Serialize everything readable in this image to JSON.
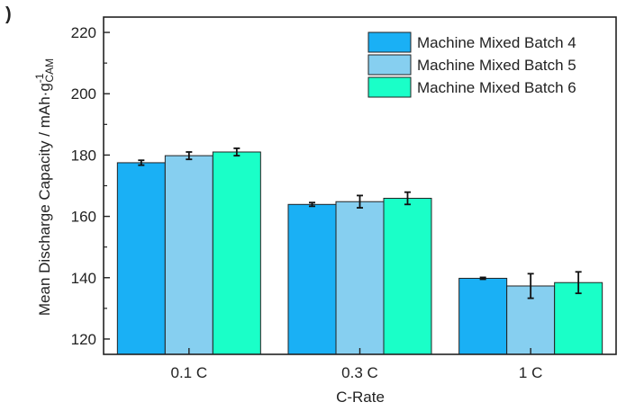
{
  "panel_label": ")",
  "chart_data": {
    "type": "bar",
    "title": "",
    "xlabel": "C-Rate",
    "ylabel_main": "Mean Discharge Capacity / mAh·g",
    "ylabel_sup": "-1",
    "ylabel_sub": "CAM",
    "categories": [
      "0.1 C",
      "0.3 C",
      "1 C"
    ],
    "ylim": [
      115,
      225
    ],
    "yticks": [
      120,
      140,
      160,
      180,
      200,
      220
    ],
    "grid": false,
    "legend_position": "top-right",
    "series": [
      {
        "name": "Machine Mixed Batch 4",
        "color": "#1ab0f5",
        "values": [
          177.5,
          163.9,
          139.8
        ],
        "errors": [
          0.8,
          0.6,
          0.3
        ]
      },
      {
        "name": "Machine Mixed Batch 5",
        "color": "#86cff0",
        "values": [
          179.8,
          164.8,
          137.3
        ],
        "errors": [
          1.2,
          2.0,
          4.0
        ]
      },
      {
        "name": "Machine Mixed Batch 6",
        "color": "#1affc8",
        "values": [
          181.0,
          165.9,
          138.4
        ],
        "errors": [
          1.2,
          2.0,
          3.5
        ]
      }
    ]
  }
}
